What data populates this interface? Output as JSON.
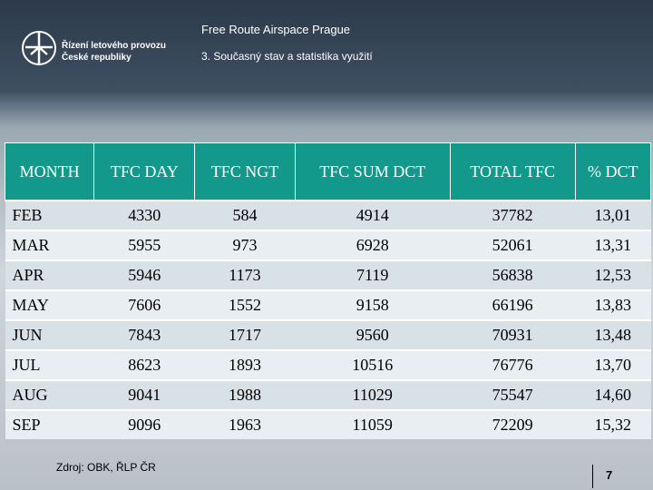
{
  "header": {
    "organization": [
      "Řízení letového provozu",
      "České republiky"
    ],
    "title": "Free Route Airspace Prague",
    "subtitle": "3. Současný stav a statistika využití"
  },
  "table": {
    "columns": [
      "MONTH",
      "TFC DAY",
      "TFC NGT",
      "TFC SUM DCT",
      "TOTAL TFC",
      "% DCT"
    ],
    "rows": [
      [
        "FEB",
        "4330",
        "584",
        "4914",
        "37782",
        "13,01"
      ],
      [
        "MAR",
        "5955",
        "973",
        "6928",
        "52061",
        "13,31"
      ],
      [
        "APR",
        "5946",
        "1173",
        "7119",
        "56838",
        "12,53"
      ],
      [
        "MAY",
        "7606",
        "1552",
        "9158",
        "66196",
        "13,83"
      ],
      [
        "JUN",
        "7843",
        "1717",
        "9560",
        "70931",
        "13,48"
      ],
      [
        "JUL",
        "8623",
        "1893",
        "10516",
        "76776",
        "13,70"
      ],
      [
        "AUG",
        "9041",
        "1988",
        "11029",
        "75547",
        "14,60"
      ],
      [
        "SEP",
        "9096",
        "1963",
        "11059",
        "72209",
        "15,32"
      ]
    ]
  },
  "footer": {
    "source": "Zdroj: OBK, ŘLP ČR",
    "page": "7"
  }
}
